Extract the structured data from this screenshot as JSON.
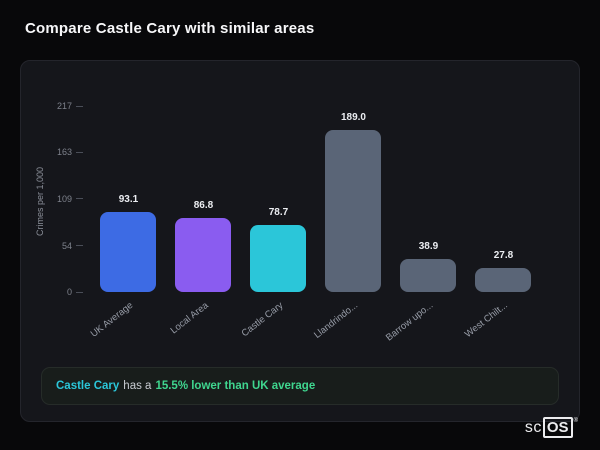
{
  "page": {
    "title": "Compare Castle Cary with similar areas"
  },
  "chart_data": {
    "type": "bar",
    "title": "Compare Castle Cary with similar areas",
    "ylabel": "Crimes per 1,000",
    "xlabel": "",
    "categories": [
      "UK Average",
      "Local Area",
      "Castle Cary",
      "Llandrindo...",
      "Barrow upo...",
      "West Chilt..."
    ],
    "values": [
      93.1,
      86.8,
      78.7,
      189.0,
      38.9,
      27.8
    ],
    "value_labels": [
      "93.1",
      "86.8",
      "78.7",
      "189.0",
      "38.9",
      "27.8"
    ],
    "bar_colors": [
      "#3d6be4",
      "#8a5cf0",
      "#2bc6d9",
      "#5a6577",
      "#5a6577",
      "#5a6577"
    ],
    "yticks": [
      0,
      54,
      109,
      163,
      217
    ],
    "ylim": [
      0,
      217
    ],
    "grid": false,
    "legend_position": "none"
  },
  "banner": {
    "area_name": "Castle Cary",
    "connector": "has a",
    "highlight": "15.5% lower than UK average"
  },
  "logo": {
    "prefix": "sc",
    "suffix": "OS",
    "registered": "®"
  },
  "colors": {
    "page_bg": "#08080a",
    "card_bg": "#15161b",
    "accent_teal": "#2bc6d9",
    "accent_green": "#3fd68f",
    "text_muted": "#8b8f99"
  }
}
